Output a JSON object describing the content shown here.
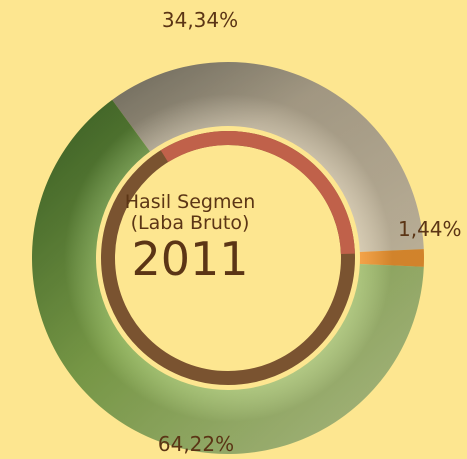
{
  "chart_data": {
    "type": "pie",
    "title": "Hasil Segmen (Laba Bruto)",
    "title_lines": [
      "Hasil Segmen",
      "(Laba Bruto)"
    ],
    "year": "2011",
    "legend": "none",
    "slices": [
      {
        "label": "34,34%",
        "value": 34.34,
        "color": "#b9ad92"
      },
      {
        "label": "1,44%",
        "value": 1.44,
        "color": "#f69a33"
      },
      {
        "label": "64,22%",
        "value": 64.22,
        "color": "#98b65c"
      }
    ]
  },
  "colors": {
    "background": "#fde690",
    "text": "#5b3515",
    "inner_ring": "#7a5330",
    "inner_ring_accent": "#c0614a"
  }
}
